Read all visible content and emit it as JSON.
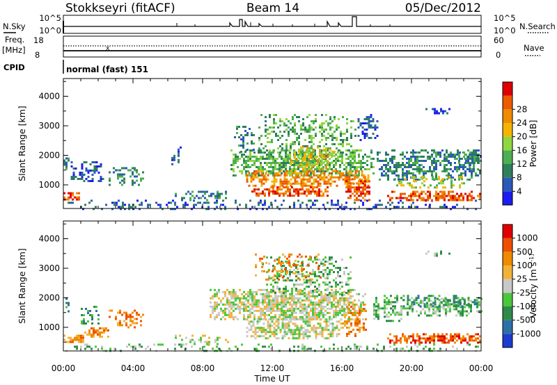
{
  "header": {
    "station": "Stokkseyri (fitACF)",
    "beam": "Beam 14",
    "date": "05/Dec/2012"
  },
  "top_panels": {
    "nsky_label": "N.Sky",
    "nsky_ticks": [
      "10^5",
      "10^0"
    ],
    "nsearch_label": "N.Search",
    "nsearch_ticks": [
      "10^5",
      "10^0"
    ],
    "freq_label": "Freq.",
    "freq_unit": "[MHz]",
    "freq_ticks": [
      "18",
      "8"
    ],
    "nave_label": "Nave",
    "nave_ticks": [
      "60",
      "0"
    ],
    "cpid_label": "CPID",
    "cpid_value": "normal (fast) 151"
  },
  "chart_data": [
    {
      "type": "heatmap",
      "name": "power",
      "xlabel": "",
      "ylabel": "Slant Range [km]",
      "xlim": [
        0,
        24
      ],
      "ylim": [
        200,
        4600
      ],
      "y_ticks": [
        1000,
        2000,
        3000,
        4000
      ],
      "y_tick_labels": [
        "1000",
        "2000",
        "3000",
        "4000"
      ],
      "grid": false,
      "colorbar": {
        "label": "Power [dB]",
        "ticks": [
          "4",
          "8",
          "12",
          "16",
          "20",
          "24",
          "28"
        ],
        "colors": [
          "#1c1cf0",
          "#2a5ab8",
          "#2e7f5c",
          "#4caf50",
          "#8fd640",
          "#f4b400",
          "#f08a00",
          "#ee5a00",
          "#e00000"
        ]
      },
      "blobs": [
        {
          "t0": 0.0,
          "t1": 0.9,
          "r0": 500,
          "r1": 750,
          "level": 7,
          "density": 0.85
        },
        {
          "t0": 0.0,
          "t1": 0.3,
          "r0": 1500,
          "r1": 2000,
          "level": 2,
          "density": 0.6
        },
        {
          "t0": 0.3,
          "t1": 2.3,
          "r0": 1100,
          "r1": 1800,
          "level": 1,
          "density": 0.45
        },
        {
          "t0": 2.6,
          "t1": 4.6,
          "r0": 1000,
          "r1": 1600,
          "level": 2,
          "density": 0.4
        },
        {
          "t0": 0.0,
          "t1": 24.0,
          "r0": 200,
          "r1": 500,
          "level": 1,
          "density": 0.3
        },
        {
          "t0": 9.6,
          "t1": 17.8,
          "r0": 1300,
          "r1": 2200,
          "level": 3,
          "density": 0.75
        },
        {
          "t0": 10.5,
          "t1": 17.5,
          "r0": 1000,
          "r1": 1500,
          "level": 6,
          "density": 0.7
        },
        {
          "t0": 10.8,
          "t1": 15.2,
          "r0": 650,
          "r1": 950,
          "level": 7,
          "density": 0.75
        },
        {
          "t0": 11.2,
          "t1": 16.8,
          "r0": 2100,
          "r1": 3400,
          "level": 3,
          "density": 0.4
        },
        {
          "t0": 13.0,
          "t1": 15.6,
          "r0": 1500,
          "r1": 2300,
          "level": 5,
          "density": 0.5
        },
        {
          "t0": 16.2,
          "t1": 17.6,
          "r0": 500,
          "r1": 1300,
          "level": 7,
          "density": 0.6
        },
        {
          "t0": 16.9,
          "t1": 18.0,
          "r0": 2500,
          "r1": 3400,
          "level": 1,
          "density": 0.5
        },
        {
          "t0": 18.0,
          "t1": 24.0,
          "r0": 1200,
          "r1": 2200,
          "level": 2,
          "density": 0.6
        },
        {
          "t0": 18.6,
          "t1": 24.0,
          "r0": 500,
          "r1": 800,
          "level": 7,
          "density": 0.8
        },
        {
          "t0": 19.0,
          "t1": 23.0,
          "r0": 900,
          "r1": 1300,
          "level": 4,
          "density": 0.5
        },
        {
          "t0": 22.6,
          "t1": 24.0,
          "r0": 1700,
          "r1": 2200,
          "level": 2,
          "density": 0.6
        },
        {
          "t0": 6.4,
          "t1": 9.5,
          "r0": 500,
          "r1": 800,
          "level": 2,
          "density": 0.45
        },
        {
          "t0": 6.2,
          "t1": 6.8,
          "r0": 1700,
          "r1": 2300,
          "level": 1,
          "density": 0.4
        },
        {
          "t0": 20.8,
          "t1": 22.2,
          "r0": 3400,
          "r1": 3600,
          "level": 1,
          "density": 0.5
        },
        {
          "t0": 9.8,
          "t1": 11.0,
          "r0": 2100,
          "r1": 3000,
          "level": 2,
          "density": 0.35
        }
      ]
    },
    {
      "type": "heatmap",
      "name": "velocity",
      "xlabel": "Time UT",
      "ylabel": "Slant Range [km]",
      "xlim": [
        0,
        24
      ],
      "ylim": [
        200,
        4600
      ],
      "x_ticks": [
        0,
        4,
        8,
        12,
        16,
        20,
        24
      ],
      "x_tick_labels": [
        "00:00",
        "04:00",
        "08:00",
        "12:00",
        "16:00",
        "20:00",
        "00:00"
      ],
      "y_ticks": [
        1000,
        2000,
        3000,
        4000
      ],
      "y_tick_labels": [
        "1000",
        "2000",
        "3000",
        "4000"
      ],
      "grid": false,
      "colorbar": {
        "label": "Velocity [m s^-1]",
        "ticks": [
          "1000",
          "500",
          "100",
          "25",
          "-25",
          "-100",
          "-500",
          "-1000"
        ],
        "colors": [
          "#1c3cd0",
          "#2e6fa8",
          "#2e8a4a",
          "#4cc63c",
          "#c8c8c8",
          "#f2b238",
          "#f08a00",
          "#ee5000",
          "#e00000"
        ]
      },
      "blobs": [
        {
          "t0": 0.0,
          "t1": 1.2,
          "r0": 500,
          "r1": 750,
          "level": 6,
          "density": 0.85
        },
        {
          "t0": 1.2,
          "t1": 2.6,
          "r0": 700,
          "r1": 1000,
          "level": 6,
          "density": 0.7
        },
        {
          "t0": 0.0,
          "t1": 0.3,
          "r0": 1500,
          "r1": 2000,
          "level": 2,
          "density": 0.6
        },
        {
          "t0": 1.0,
          "t1": 2.0,
          "r0": 1100,
          "r1": 1800,
          "level": 2,
          "density": 0.4
        },
        {
          "t0": 2.6,
          "t1": 4.6,
          "r0": 1000,
          "r1": 1600,
          "level": 6,
          "density": 0.45
        },
        {
          "t0": 0.0,
          "t1": 24.0,
          "r0": 200,
          "r1": 450,
          "level": 3,
          "density": 0.3
        },
        {
          "t0": 8.4,
          "t1": 17.4,
          "r0": 1300,
          "r1": 2300,
          "level": 4,
          "density": 0.8
        },
        {
          "t0": 10.5,
          "t1": 16.0,
          "r0": 650,
          "r1": 1300,
          "level": 4,
          "density": 0.7
        },
        {
          "t0": 11.4,
          "t1": 16.6,
          "r0": 2100,
          "r1": 3400,
          "level": 3,
          "density": 0.35
        },
        {
          "t0": 16.0,
          "t1": 17.4,
          "r0": 700,
          "r1": 1800,
          "level": 6,
          "density": 0.5
        },
        {
          "t0": 17.8,
          "t1": 20.0,
          "r0": 1200,
          "r1": 2100,
          "level": 3,
          "density": 0.55
        },
        {
          "t0": 20.0,
          "t1": 24.0,
          "r0": 1400,
          "r1": 2000,
          "level": 3,
          "density": 0.6
        },
        {
          "t0": 18.6,
          "t1": 24.0,
          "r0": 450,
          "r1": 800,
          "level": 7,
          "density": 0.8
        },
        {
          "t0": 19.5,
          "t1": 24.0,
          "r0": 1700,
          "r1": 2100,
          "level": 2,
          "density": 0.4
        },
        {
          "t0": 11.0,
          "t1": 15.0,
          "r0": 2600,
          "r1": 3500,
          "level": 6,
          "density": 0.25
        },
        {
          "t0": 20.8,
          "t1": 22.2,
          "r0": 3400,
          "r1": 3600,
          "level": 3,
          "density": 0.5
        },
        {
          "t0": 6.4,
          "t1": 9.5,
          "r0": 450,
          "r1": 750,
          "level": 4,
          "density": 0.35
        }
      ]
    }
  ]
}
